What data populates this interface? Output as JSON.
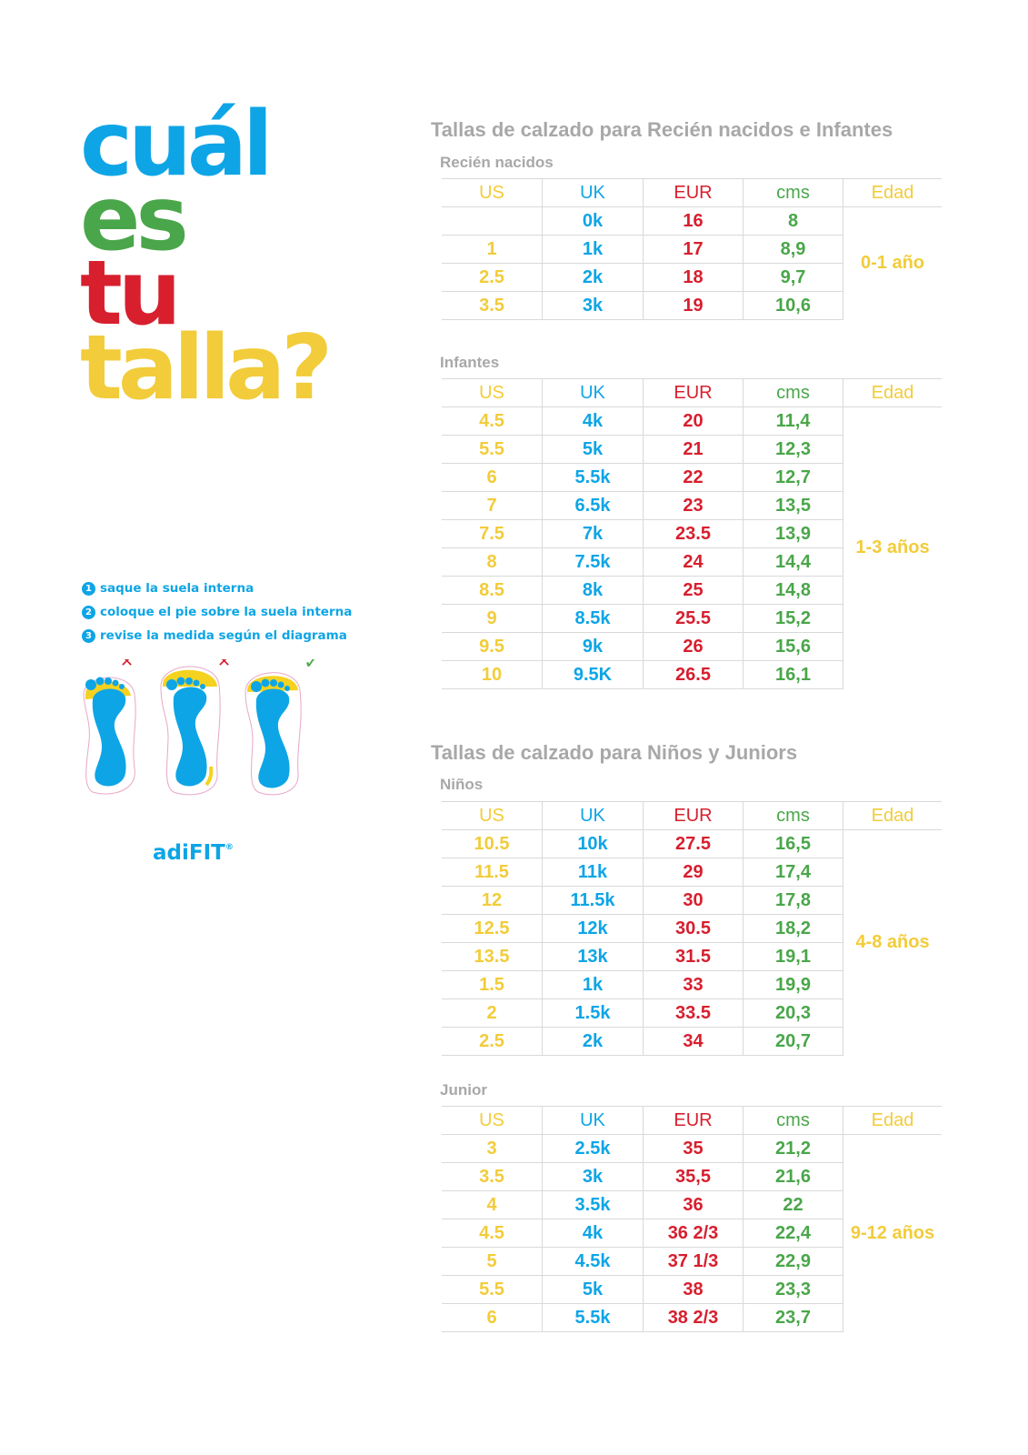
{
  "hero": {
    "line1": "cuál",
    "line2": "es",
    "line3": "tu",
    "line4": "talla?"
  },
  "steps": [
    {
      "num": "1",
      "text": "saque la suela interna"
    },
    {
      "num": "2",
      "text": "coloque el pie sobre la suela interna"
    },
    {
      "num": "3",
      "text": "revise la medida según el diagrama"
    }
  ],
  "feet_marks": [
    "✕",
    "✕",
    "✓"
  ],
  "brand": {
    "name": "adiFIT",
    "mark": "®"
  },
  "colors": {
    "blue": "#0ea5e6",
    "green": "#4aa64a",
    "red": "#d71f2e",
    "yellow": "#f2cc3a",
    "grey": "#a8a8a8"
  },
  "columns": {
    "us": "US",
    "uk": "UK",
    "eur": "EUR",
    "cms": "cms",
    "age": "Edad"
  },
  "section1": {
    "title": "Tallas de calzado para Recién nacidos e Infantes",
    "newborn": {
      "title": "Recién nacidos",
      "age": "0-1 año",
      "rows": [
        [
          "",
          "0k",
          "16",
          "8"
        ],
        [
          "1",
          "1k",
          "17",
          "8,9"
        ],
        [
          "2.5",
          "2k",
          "18",
          "9,7"
        ],
        [
          "3.5",
          "3k",
          "19",
          "10,6"
        ]
      ]
    },
    "infants": {
      "title": "Infantes",
      "age": "1-3 años",
      "rows": [
        [
          "4.5",
          "4k",
          "20",
          "11,4"
        ],
        [
          "5.5",
          "5k",
          "21",
          "12,3"
        ],
        [
          "6",
          "5.5k",
          "22",
          "12,7"
        ],
        [
          "7",
          "6.5k",
          "23",
          "13,5"
        ],
        [
          "7.5",
          "7k",
          "23.5",
          "13,9"
        ],
        [
          "8",
          "7.5k",
          "24",
          "14,4"
        ],
        [
          "8.5",
          "8k",
          "25",
          "14,8"
        ],
        [
          "9",
          "8.5k",
          "25.5",
          "15,2"
        ],
        [
          "9.5",
          "9k",
          "26",
          "15,6"
        ],
        [
          "10",
          "9.5K",
          "26.5",
          "16,1"
        ]
      ]
    }
  },
  "section2": {
    "title": "Tallas de calzado para Niños y Juniors",
    "kids": {
      "title": "Niños",
      "age": "4-8 años",
      "rows": [
        [
          "10.5",
          "10k",
          "27.5",
          "16,5"
        ],
        [
          "11.5",
          "11k",
          "29",
          "17,4"
        ],
        [
          "12",
          "11.5k",
          "30",
          "17,8"
        ],
        [
          "12.5",
          "12k",
          "30.5",
          "18,2"
        ],
        [
          "13.5",
          "13k",
          "31.5",
          "19,1"
        ],
        [
          "1.5",
          "1k",
          "33",
          "19,9"
        ],
        [
          "2",
          "1.5k",
          "33.5",
          "20,3"
        ],
        [
          "2.5",
          "2k",
          "34",
          "20,7"
        ]
      ]
    },
    "junior": {
      "title": "Junior",
      "age": "9-12 años",
      "rows": [
        [
          "3",
          "2.5k",
          "35",
          "21,2"
        ],
        [
          "3.5",
          "3k",
          "35,5",
          "21,6"
        ],
        [
          "4",
          "3.5k",
          "36",
          "22"
        ],
        [
          "4.5",
          "4k",
          "36 2/3",
          "22,4"
        ],
        [
          "5",
          "4.5k",
          "37 1/3",
          "22,9"
        ],
        [
          "5.5",
          "5k",
          "38",
          "23,3"
        ],
        [
          "6",
          "5.5k",
          "38 2/3",
          "23,7"
        ]
      ]
    }
  }
}
